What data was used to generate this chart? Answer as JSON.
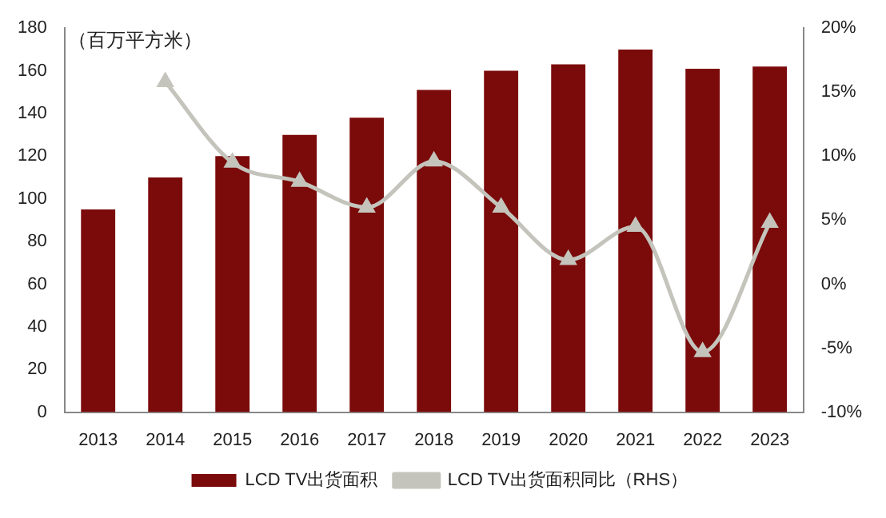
{
  "chart_data": {
    "type": "bar",
    "ylabel": "（百万平方米）",
    "categories": [
      "2013",
      "2014",
      "2015",
      "2016",
      "2017",
      "2018",
      "2019",
      "2020",
      "2021",
      "2022",
      "2023"
    ],
    "series": [
      {
        "name": "LCD TV出货面积",
        "color": "#7b0a0a",
        "values": [
          95,
          110,
          120,
          130,
          138,
          151,
          160,
          163,
          170,
          161,
          162
        ]
      },
      {
        "name": "LCD TV出货面积同比（RHS）",
        "type": "line",
        "axis": "y2",
        "color": "#c4c4bc",
        "marker": "triangle",
        "values": [
          null,
          15.8,
          9.5,
          8,
          6,
          9.6,
          6,
          1.9,
          4.5,
          -5.3,
          4.8
        ]
      }
    ],
    "ylim": [
      0,
      180
    ],
    "yticks": [
      0,
      20,
      40,
      60,
      80,
      100,
      120,
      140,
      160,
      180
    ],
    "y2lim": [
      -10,
      20
    ],
    "y2ticks": [
      {
        "value": -10,
        "label": "-10%"
      },
      {
        "value": -5,
        "label": "-5%"
      },
      {
        "value": 0,
        "label": "0%"
      },
      {
        "value": 5,
        "label": "5%"
      },
      {
        "value": 10,
        "label": "10%"
      },
      {
        "value": 15,
        "label": "15%"
      },
      {
        "value": 20,
        "label": "20%"
      }
    ],
    "grid": false,
    "legend": "bottom"
  }
}
